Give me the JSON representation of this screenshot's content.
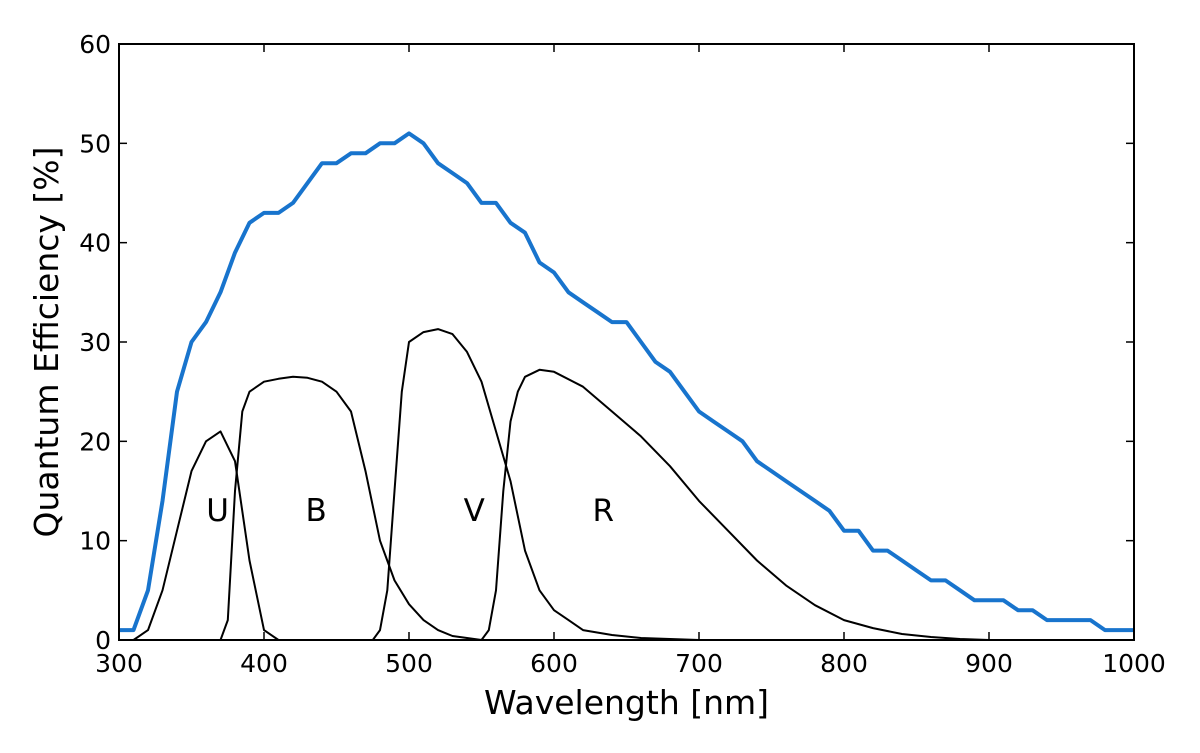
{
  "chart_data": {
    "type": "line",
    "title": "",
    "xlabel": "Wavelength [nm]",
    "ylabel": "Quantum Efficiency [%]",
    "xlim": [
      300,
      1000
    ],
    "ylim": [
      0,
      60
    ],
    "xticks": [
      300,
      400,
      500,
      600,
      700,
      800,
      900,
      1000
    ],
    "yticks": [
      0,
      10,
      20,
      30,
      40,
      50,
      60
    ],
    "grid": false,
    "legend": "none",
    "qe_color": "#1874cd",
    "band_color": "#000000",
    "series": [
      {
        "x": [
          300,
          310,
          320,
          330,
          340,
          350,
          360,
          370,
          380,
          390,
          400,
          410,
          420,
          430,
          440,
          450,
          460,
          470,
          480,
          490,
          500,
          510,
          520,
          530,
          540,
          550,
          560,
          570,
          580,
          590,
          600,
          610,
          620,
          630,
          640,
          650,
          660,
          670,
          680,
          690,
          700,
          710,
          720,
          730,
          740,
          750,
          760,
          770,
          780,
          790,
          800,
          810,
          820,
          830,
          840,
          850,
          860,
          870,
          880,
          890,
          900,
          910,
          920,
          930,
          940,
          950,
          960,
          970,
          980,
          990,
          1000
        ],
        "y": [
          1,
          1,
          5,
          14,
          25,
          30,
          32,
          35,
          39,
          42,
          43,
          43,
          44,
          46,
          48,
          48,
          49,
          49,
          50,
          50,
          51,
          50,
          48,
          47,
          46,
          44,
          44,
          42,
          41,
          38,
          37,
          35,
          34,
          33,
          32,
          32,
          30,
          28,
          27,
          25,
          23,
          22,
          21,
          20,
          18,
          17,
          16,
          15,
          14,
          13,
          11,
          11,
          9,
          9,
          8,
          7,
          6,
          6,
          5,
          4,
          4,
          4,
          3,
          3,
          2,
          2,
          2,
          2,
          1,
          1,
          1
        ]
      },
      {
        "x": [
          300,
          310,
          320,
          330,
          340,
          350,
          360,
          370,
          380,
          390,
          400,
          410
        ],
        "y": [
          0,
          0,
          1,
          5,
          11,
          17,
          20,
          21,
          18,
          8,
          1,
          0
        ]
      },
      {
        "x": [
          370,
          375,
          380,
          385,
          390,
          400,
          410,
          420,
          430,
          440,
          450,
          460,
          470,
          480,
          490,
          500,
          510,
          520,
          530,
          540,
          550
        ],
        "y": [
          0,
          2,
          15,
          23,
          25,
          26,
          26.3,
          26.5,
          26.4,
          26,
          25,
          23,
          17,
          10,
          6,
          3.6,
          2,
          1,
          0.4,
          0.2,
          0
        ]
      },
      {
        "x": [
          475,
          480,
          485,
          490,
          495,
          500,
          510,
          520,
          530,
          540,
          550,
          560,
          570,
          580,
          590,
          600,
          610,
          620,
          640,
          660,
          680,
          700
        ],
        "y": [
          0,
          1,
          5,
          15,
          25,
          30,
          31,
          31.3,
          30.8,
          29,
          26,
          21,
          16,
          9,
          5,
          3,
          2,
          1,
          0.5,
          0.2,
          0.1,
          0
        ]
      },
      {
        "x": [
          550,
          555,
          560,
          565,
          570,
          575,
          580,
          590,
          600,
          620,
          640,
          660,
          680,
          700,
          720,
          740,
          760,
          780,
          800,
          820,
          840,
          860,
          880,
          900
        ],
        "y": [
          0,
          1,
          5,
          15,
          22,
          25,
          26.5,
          27.2,
          27,
          25.5,
          23,
          20.5,
          17.5,
          14,
          11,
          8,
          5.5,
          3.5,
          2,
          1.2,
          0.6,
          0.3,
          0.1,
          0
        ]
      }
    ],
    "annotations": [
      {
        "text": "U",
        "x": 368,
        "y": 13.2
      },
      {
        "text": "B",
        "x": 436,
        "y": 13.2
      },
      {
        "text": "V",
        "x": 545,
        "y": 13.2
      },
      {
        "text": "R",
        "x": 634,
        "y": 13.2
      }
    ]
  }
}
